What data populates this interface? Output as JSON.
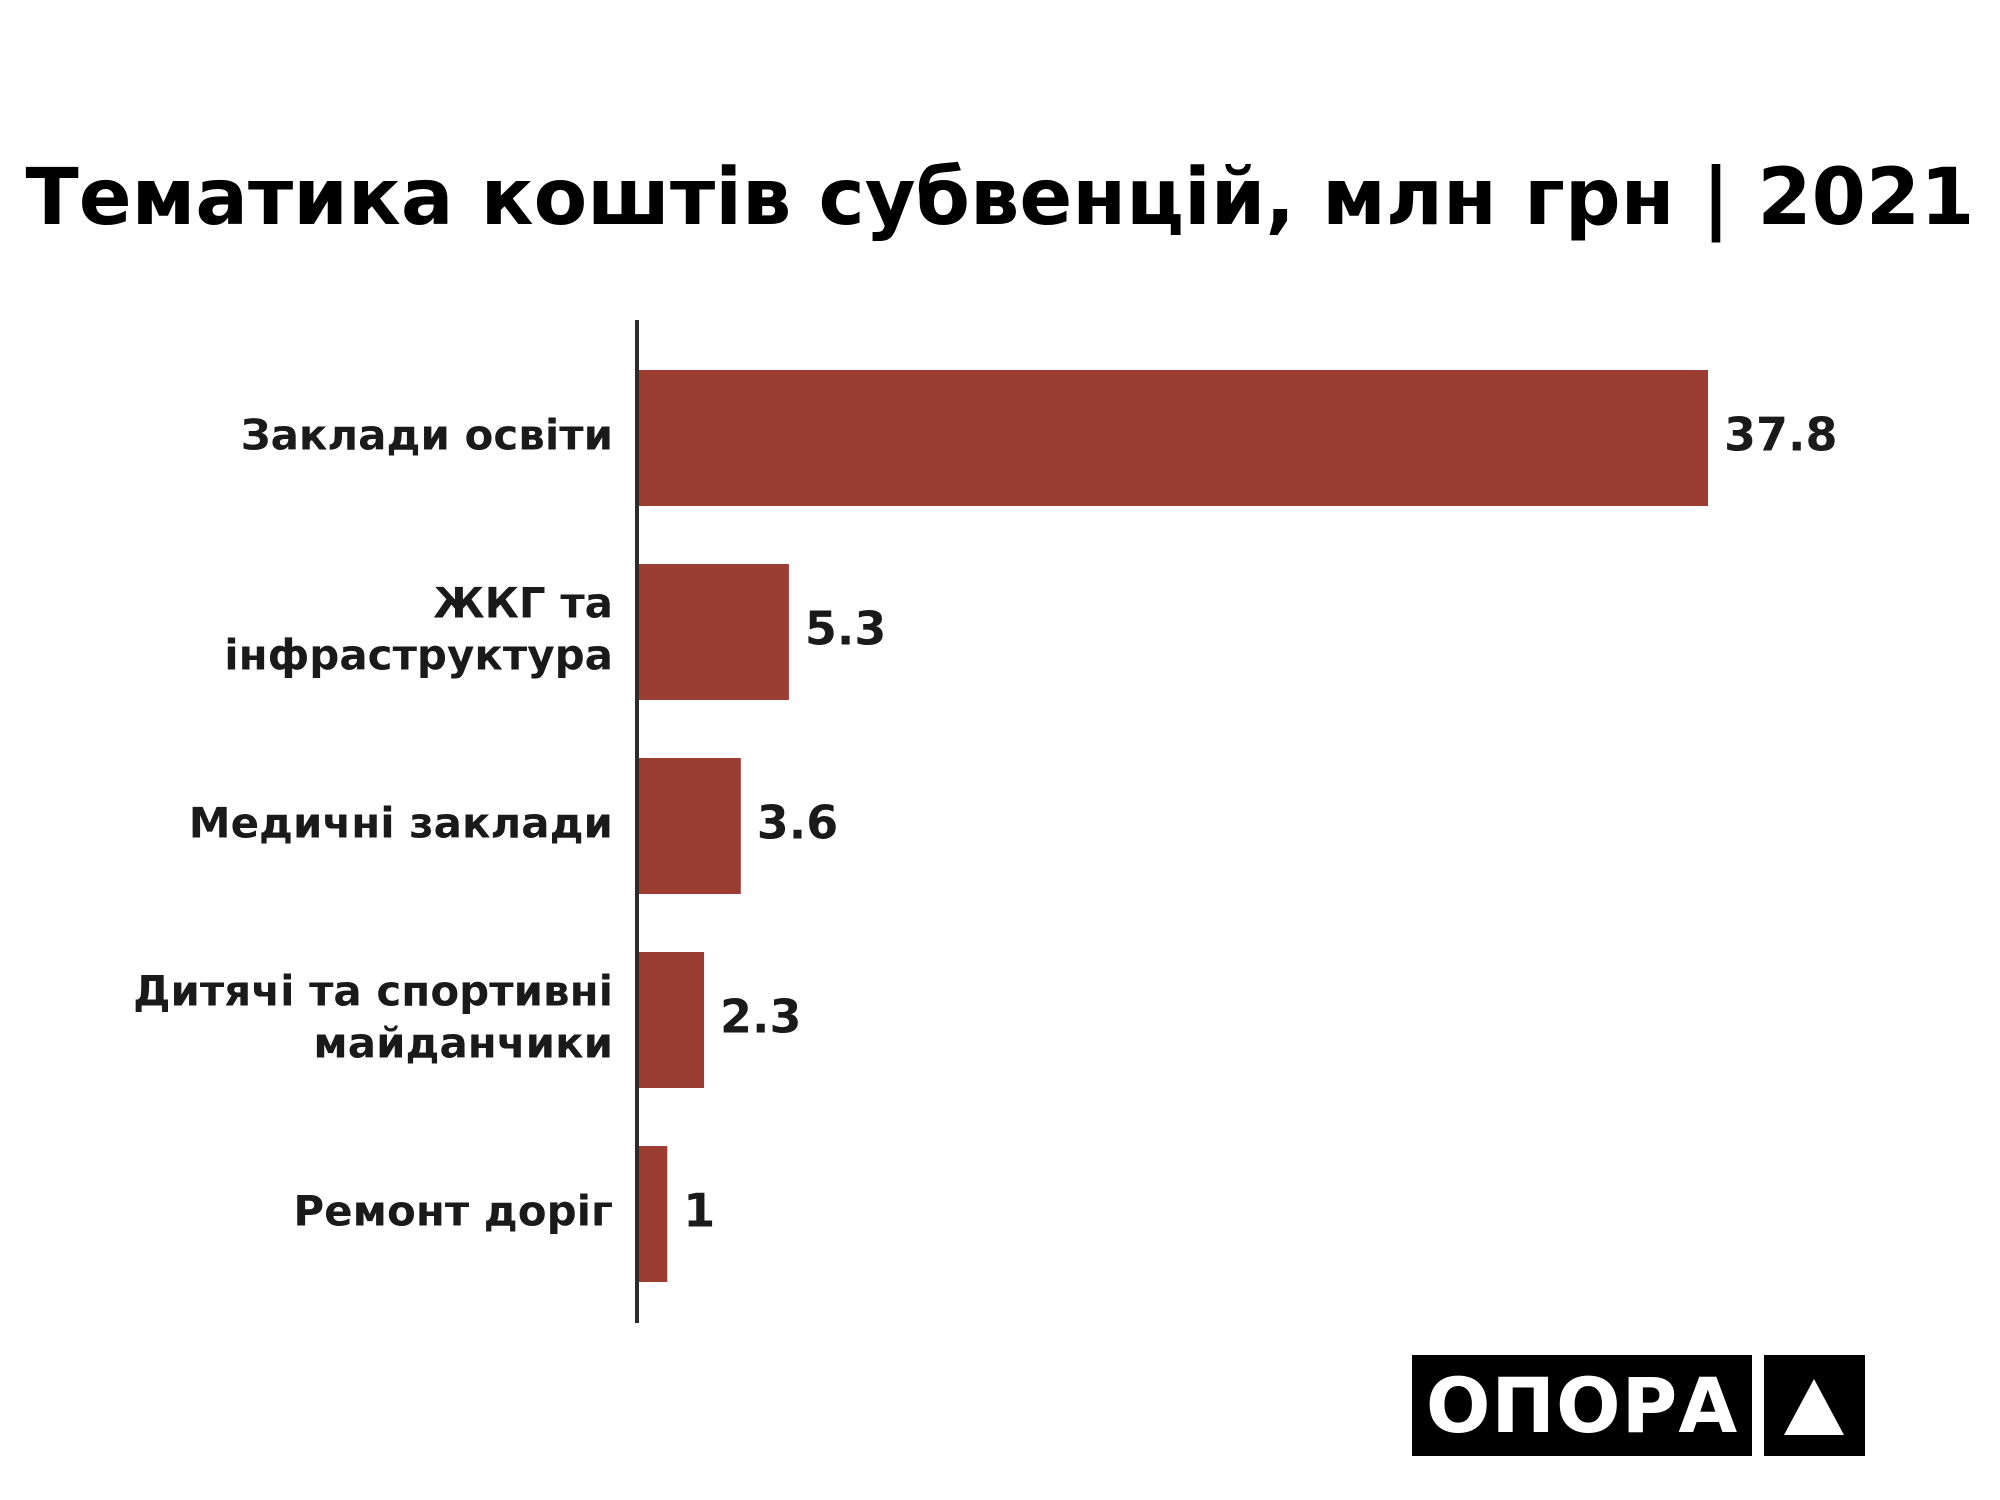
{
  "chart_data": {
    "type": "bar",
    "orientation": "horizontal",
    "title": "Тематика коштів субвенцій, млн грн | 2021",
    "categories": [
      [
        "Заклади освіти"
      ],
      [
        "ЖКГ та",
        "інфраструктура"
      ],
      [
        "Медичні заклади"
      ],
      [
        "Дитячі та спортивні",
        "майданчики"
      ],
      [
        "Ремонт доріг"
      ]
    ],
    "values": [
      37.8,
      5.3,
      3.6,
      2.3,
      1
    ],
    "value_labels": [
      "37.8",
      "5.3",
      "3.6",
      "2.3",
      "1"
    ],
    "xlim": [
      0,
      37.8
    ],
    "grid": false,
    "legend": "none",
    "colors": {
      "bar": "#9c3d33",
      "axis": "#2b2b2b",
      "text": "#1a1a1a"
    }
  },
  "logo": {
    "text": "ОПОРА",
    "icon": "triangle-icon"
  }
}
